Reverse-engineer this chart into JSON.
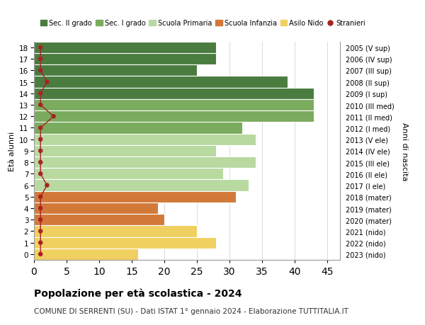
{
  "ages": [
    18,
    17,
    16,
    15,
    14,
    13,
    12,
    11,
    10,
    9,
    8,
    7,
    6,
    5,
    4,
    3,
    2,
    1,
    0
  ],
  "years_labels": [
    "2005 (V sup)",
    "2006 (IV sup)",
    "2007 (III sup)",
    "2008 (II sup)",
    "2009 (I sup)",
    "2010 (III med)",
    "2011 (II med)",
    "2012 (I med)",
    "2013 (V ele)",
    "2014 (IV ele)",
    "2015 (III ele)",
    "2016 (II ele)",
    "2017 (I ele)",
    "2018 (mater)",
    "2019 (mater)",
    "2020 (mater)",
    "2021 (nido)",
    "2022 (nido)",
    "2023 (nido)"
  ],
  "bar_values": [
    28,
    28,
    25,
    39,
    43,
    43,
    43,
    32,
    34,
    28,
    34,
    29,
    33,
    31,
    19,
    20,
    25,
    28,
    16
  ],
  "bar_colors": [
    "#4a7c3f",
    "#4a7c3f",
    "#4a7c3f",
    "#4a7c3f",
    "#4a7c3f",
    "#7aab5e",
    "#7aab5e",
    "#7aab5e",
    "#b8d9a0",
    "#b8d9a0",
    "#b8d9a0",
    "#b8d9a0",
    "#b8d9a0",
    "#d2793a",
    "#d2793a",
    "#d2793a",
    "#f0d060",
    "#f0d060",
    "#f0d060"
  ],
  "stranieri_values": [
    1,
    1,
    1,
    2,
    1,
    1,
    3,
    1,
    1,
    1,
    1,
    1,
    2,
    1,
    1,
    1,
    1,
    1,
    1
  ],
  "stranieri_color": "#aa2222",
  "ylabel_left": "Età alunni",
  "ylabel_right": "Anni di nascita",
  "xlim": [
    0,
    47
  ],
  "xticks": [
    0,
    5,
    10,
    15,
    20,
    25,
    30,
    35,
    40,
    45
  ],
  "title_bold": "Popolazione per età scolastica - 2024",
  "subtitle": "COMUNE DI SERRENTI (SU) - Dati ISTAT 1° gennaio 2024 - Elaborazione TUTTITALIA.IT",
  "legend_items": [
    {
      "label": "Sec. II grado",
      "color": "#4a7c3f"
    },
    {
      "label": "Sec. I grado",
      "color": "#7aab5e"
    },
    {
      "label": "Scuola Primaria",
      "color": "#b8d9a0"
    },
    {
      "label": "Scuola Infanzia",
      "color": "#d2793a"
    },
    {
      "label": "Asilo Nido",
      "color": "#f0d060"
    },
    {
      "label": "Stranieri",
      "color": "#aa2222"
    }
  ],
  "background_color": "#ffffff",
  "grid_color": "#cccccc"
}
